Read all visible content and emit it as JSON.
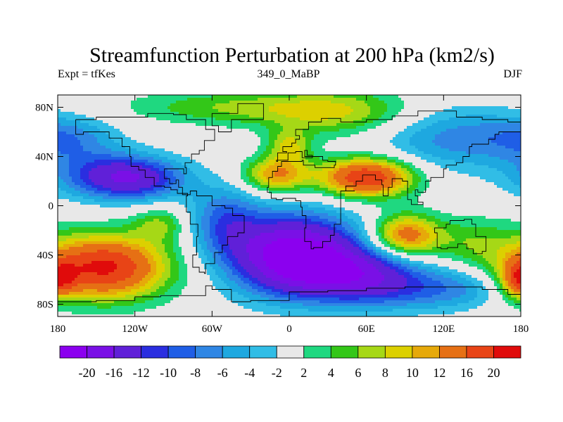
{
  "title": "Streamfunction Perturbation at 200 hPa (km2/s)",
  "subtitle_left": "Expt = tfKes",
  "subtitle_center": "349_0_MaBP",
  "subtitle_right": "DJF",
  "x_ticks": [
    "180",
    "120W",
    "60W",
    "0",
    "60E",
    "120E",
    "180"
  ],
  "y_ticks": [
    "80N",
    "40N",
    "0",
    "40S",
    "80S"
  ],
  "colorbar": {
    "labels": [
      "-20",
      "-16",
      "-12",
      "-10",
      "-8",
      "-6",
      "-4",
      "-2",
      "2",
      "4",
      "6",
      "8",
      "10",
      "12",
      "16",
      "20"
    ],
    "colors": [
      "#8b00ef",
      "#7a10e6",
      "#6020d8",
      "#2a2ee0",
      "#1f5ee6",
      "#2f86e4",
      "#1ea8e0",
      "#31bde6",
      "#e8e8e8",
      "#1fd880",
      "#33c718",
      "#a6d816",
      "#dcd000",
      "#e6a90a",
      "#e67014",
      "#e84416",
      "#e00b0b"
    ]
  },
  "map": {
    "lon_range": [
      -180,
      180
    ],
    "lat_range": [
      -90,
      90
    ],
    "color_scale": {
      "thresholds": [
        -20,
        -16,
        -12,
        -10,
        -8,
        -6,
        -4,
        -2,
        2,
        4,
        6,
        8,
        10,
        12,
        16,
        20
      ],
      "colors": [
        "#8b00ef",
        "#7a10e6",
        "#6020d8",
        "#2a2ee0",
        "#1f5ee6",
        "#2f86e4",
        "#1ea8e0",
        "#31bde6",
        "#e8e8e8",
        "#1fd880",
        "#33c718",
        "#a6d816",
        "#dcd000",
        "#e6a90a",
        "#e67014",
        "#e84416",
        "#e00b0b"
      ]
    },
    "field_centers": [
      {
        "lon": -120,
        "lat": 22,
        "amp": -13,
        "slon": 28,
        "slat": 12
      },
      {
        "lon": -150,
        "lat": 26,
        "amp": -6,
        "slon": 30,
        "slat": 14
      },
      {
        "lon": -40,
        "lat": 80,
        "amp": 6,
        "slon": 60,
        "slat": 10
      },
      {
        "lon": 40,
        "lat": 75,
        "amp": 7,
        "slon": 40,
        "slat": 14
      },
      {
        "lon": 60,
        "lat": 23,
        "amp": 20,
        "slon": 25,
        "slat": 11
      },
      {
        "lon": -10,
        "lat": 25,
        "amp": 12,
        "slon": 18,
        "slat": 10
      },
      {
        "lon": 0,
        "lat": 48,
        "amp": 8,
        "slon": 12,
        "slat": 10
      },
      {
        "lon": 130,
        "lat": 55,
        "amp": -7,
        "slon": 45,
        "slat": 18
      },
      {
        "lon": -170,
        "lat": 55,
        "amp": -5,
        "slon": 25,
        "slat": 12
      },
      {
        "lon": 5,
        "lat": -40,
        "amp": -24,
        "slon": 35,
        "slat": 22
      },
      {
        "lon": 55,
        "lat": -55,
        "amp": -12,
        "slon": 35,
        "slat": 14
      },
      {
        "lon": 90,
        "lat": -70,
        "amp": -6,
        "slon": 40,
        "slat": 12
      },
      {
        "lon": -145,
        "lat": -50,
        "amp": 21,
        "slon": 35,
        "slat": 18
      },
      {
        "lon": -100,
        "lat": -15,
        "amp": 6,
        "slon": 15,
        "slat": 10
      },
      {
        "lon": 90,
        "lat": -24,
        "amp": 14,
        "slon": 18,
        "slat": 12
      },
      {
        "lon": 140,
        "lat": -30,
        "amp": 5,
        "slon": 25,
        "slat": 15
      },
      {
        "lon": 180,
        "lat": -60,
        "amp": 13,
        "slon": 10,
        "slat": 10
      },
      {
        "lon": 140,
        "lat": -65,
        "amp": -4,
        "slon": 25,
        "slat": 12
      },
      {
        "lon": -50,
        "lat": -12,
        "amp": -8,
        "slon": 20,
        "slat": 20
      }
    ],
    "coastlines": [
      [
        [
          -166,
          70
        ],
        [
          -150,
          72
        ],
        [
          -130,
          72
        ],
        [
          -110,
          75
        ],
        [
          -90,
          74
        ],
        [
          -80,
          70
        ],
        [
          -65,
          62
        ],
        [
          -58,
          53
        ],
        [
          -66,
          45
        ],
        [
          -70,
          42
        ],
        [
          -76,
          35
        ],
        [
          -81,
          31
        ],
        [
          -80,
          26
        ],
        [
          -82,
          30
        ],
        [
          -90,
          30
        ],
        [
          -97,
          27
        ],
        [
          -97,
          22
        ],
        [
          -93,
          18
        ],
        [
          -88,
          21
        ],
        [
          -86,
          15
        ],
        [
          -83,
          10
        ],
        [
          -79,
          8
        ],
        [
          -80,
          3
        ],
        [
          -80,
          -5
        ],
        [
          -77,
          -15
        ],
        [
          -71,
          -25
        ],
        [
          -72,
          -40
        ],
        [
          -75,
          -50
        ],
        [
          -70,
          -54
        ],
        [
          -66,
          -55
        ],
        [
          -65,
          -47
        ],
        [
          -58,
          -38
        ],
        [
          -52,
          -32
        ],
        [
          -48,
          -25
        ],
        [
          -40,
          -22
        ],
        [
          -35,
          -8
        ],
        [
          -44,
          -2
        ],
        [
          -50,
          0
        ],
        [
          -60,
          8
        ],
        [
          -72,
          12
        ],
        [
          -77,
          9
        ],
        [
          -83,
          10
        ],
        [
          -87,
          13
        ],
        [
          -92,
          15
        ],
        [
          -97,
          16
        ],
        [
          -105,
          20
        ],
        [
          -105,
          23
        ],
        [
          -112,
          29
        ],
        [
          -117,
          32
        ],
        [
          -123,
          40
        ],
        [
          -124,
          48
        ],
        [
          -130,
          55
        ],
        [
          -140,
          60
        ],
        [
          -150,
          60
        ],
        [
          -160,
          58
        ],
        [
          -166,
          62
        ],
        [
          -166,
          70
        ]
      ],
      [
        [
          -10,
          36
        ],
        [
          -9,
          43
        ],
        [
          -2,
          44
        ],
        [
          -5,
          48
        ],
        [
          2,
          51
        ],
        [
          5,
          54
        ],
        [
          8,
          57
        ],
        [
          5,
          62
        ],
        [
          15,
          68
        ],
        [
          25,
          71
        ],
        [
          40,
          68
        ],
        [
          60,
          70
        ],
        [
          80,
          73
        ],
        [
          100,
          77
        ],
        [
          130,
          72
        ],
        [
          150,
          70
        ],
        [
          170,
          68
        ],
        [
          180,
          66
        ],
        [
          180,
          60
        ],
        [
          163,
          58
        ],
        [
          160,
          54
        ],
        [
          155,
          50
        ],
        [
          142,
          48
        ],
        [
          140,
          40
        ],
        [
          135,
          35
        ],
        [
          130,
          33
        ],
        [
          122,
          30
        ],
        [
          120,
          23
        ],
        [
          110,
          20
        ],
        [
          106,
          11
        ],
        [
          100,
          13
        ],
        [
          98,
          8
        ],
        [
          100,
          3
        ],
        [
          104,
          1
        ],
        [
          95,
          5
        ],
        [
          92,
          20
        ],
        [
          88,
          22
        ],
        [
          80,
          15
        ],
        [
          77,
          8
        ],
        [
          73,
          17
        ],
        [
          72,
          21
        ],
        [
          67,
          25
        ],
        [
          57,
          25
        ],
        [
          57,
          20
        ],
        [
          52,
          16
        ],
        [
          44,
          12
        ],
        [
          51,
          12
        ],
        [
          40,
          -2
        ],
        [
          40,
          -15
        ],
        [
          35,
          -24
        ],
        [
          32,
          -29
        ],
        [
          26,
          -34
        ],
        [
          19,
          -35
        ],
        [
          17,
          -29
        ],
        [
          12,
          -18
        ],
        [
          13,
          -8
        ],
        [
          10,
          -1
        ],
        [
          9,
          4
        ],
        [
          5,
          6
        ],
        [
          -5,
          5
        ],
        [
          -10,
          6
        ],
        [
          -14,
          11
        ],
        [
          -17,
          15
        ],
        [
          -16,
          23
        ],
        [
          -13,
          28
        ],
        [
          -9,
          32
        ],
        [
          -6,
          36
        ],
        [
          -2,
          36
        ],
        [
          10,
          37
        ],
        [
          11,
          33
        ],
        [
          20,
          31
        ],
        [
          30,
          31
        ],
        [
          35,
          33
        ],
        [
          36,
          36
        ],
        [
          30,
          37
        ],
        [
          26,
          40
        ],
        [
          20,
          40
        ],
        [
          12,
          45
        ],
        [
          14,
          41
        ],
        [
          18,
          39
        ],
        [
          10,
          44
        ],
        [
          5,
          43
        ],
        [
          -1,
          37
        ],
        [
          -10,
          36
        ]
      ],
      [
        [
          113,
          -22
        ],
        [
          115,
          -34
        ],
        [
          118,
          -35
        ],
        [
          123,
          -34
        ],
        [
          131,
          -31
        ],
        [
          138,
          -35
        ],
        [
          143,
          -39
        ],
        [
          150,
          -37
        ],
        [
          153,
          -30
        ],
        [
          153,
          -25
        ],
        [
          145,
          -15
        ],
        [
          142,
          -11
        ],
        [
          136,
          -12
        ],
        [
          130,
          -12
        ],
        [
          125,
          -15
        ],
        [
          122,
          -18
        ],
        [
          113,
          -22
        ]
      ],
      [
        [
          -180,
          -78
        ],
        [
          -150,
          -77
        ],
        [
          -120,
          -74
        ],
        [
          -100,
          -73
        ],
        [
          -80,
          -73
        ],
        [
          -65,
          -65
        ],
        [
          -60,
          -68
        ],
        [
          -45,
          -78
        ],
        [
          -30,
          -77
        ],
        [
          0,
          -70
        ],
        [
          30,
          -69
        ],
        [
          60,
          -67
        ],
        [
          90,
          -66
        ],
        [
          120,
          -66
        ],
        [
          150,
          -68
        ],
        [
          170,
          -72
        ],
        [
          180,
          -78
        ]
      ],
      [
        [
          -45,
          60
        ],
        [
          -55,
          65
        ],
        [
          -60,
          75
        ],
        [
          -40,
          83
        ],
        [
          -20,
          82
        ],
        [
          -20,
          70
        ],
        [
          -45,
          60
        ]
      ]
    ]
  }
}
